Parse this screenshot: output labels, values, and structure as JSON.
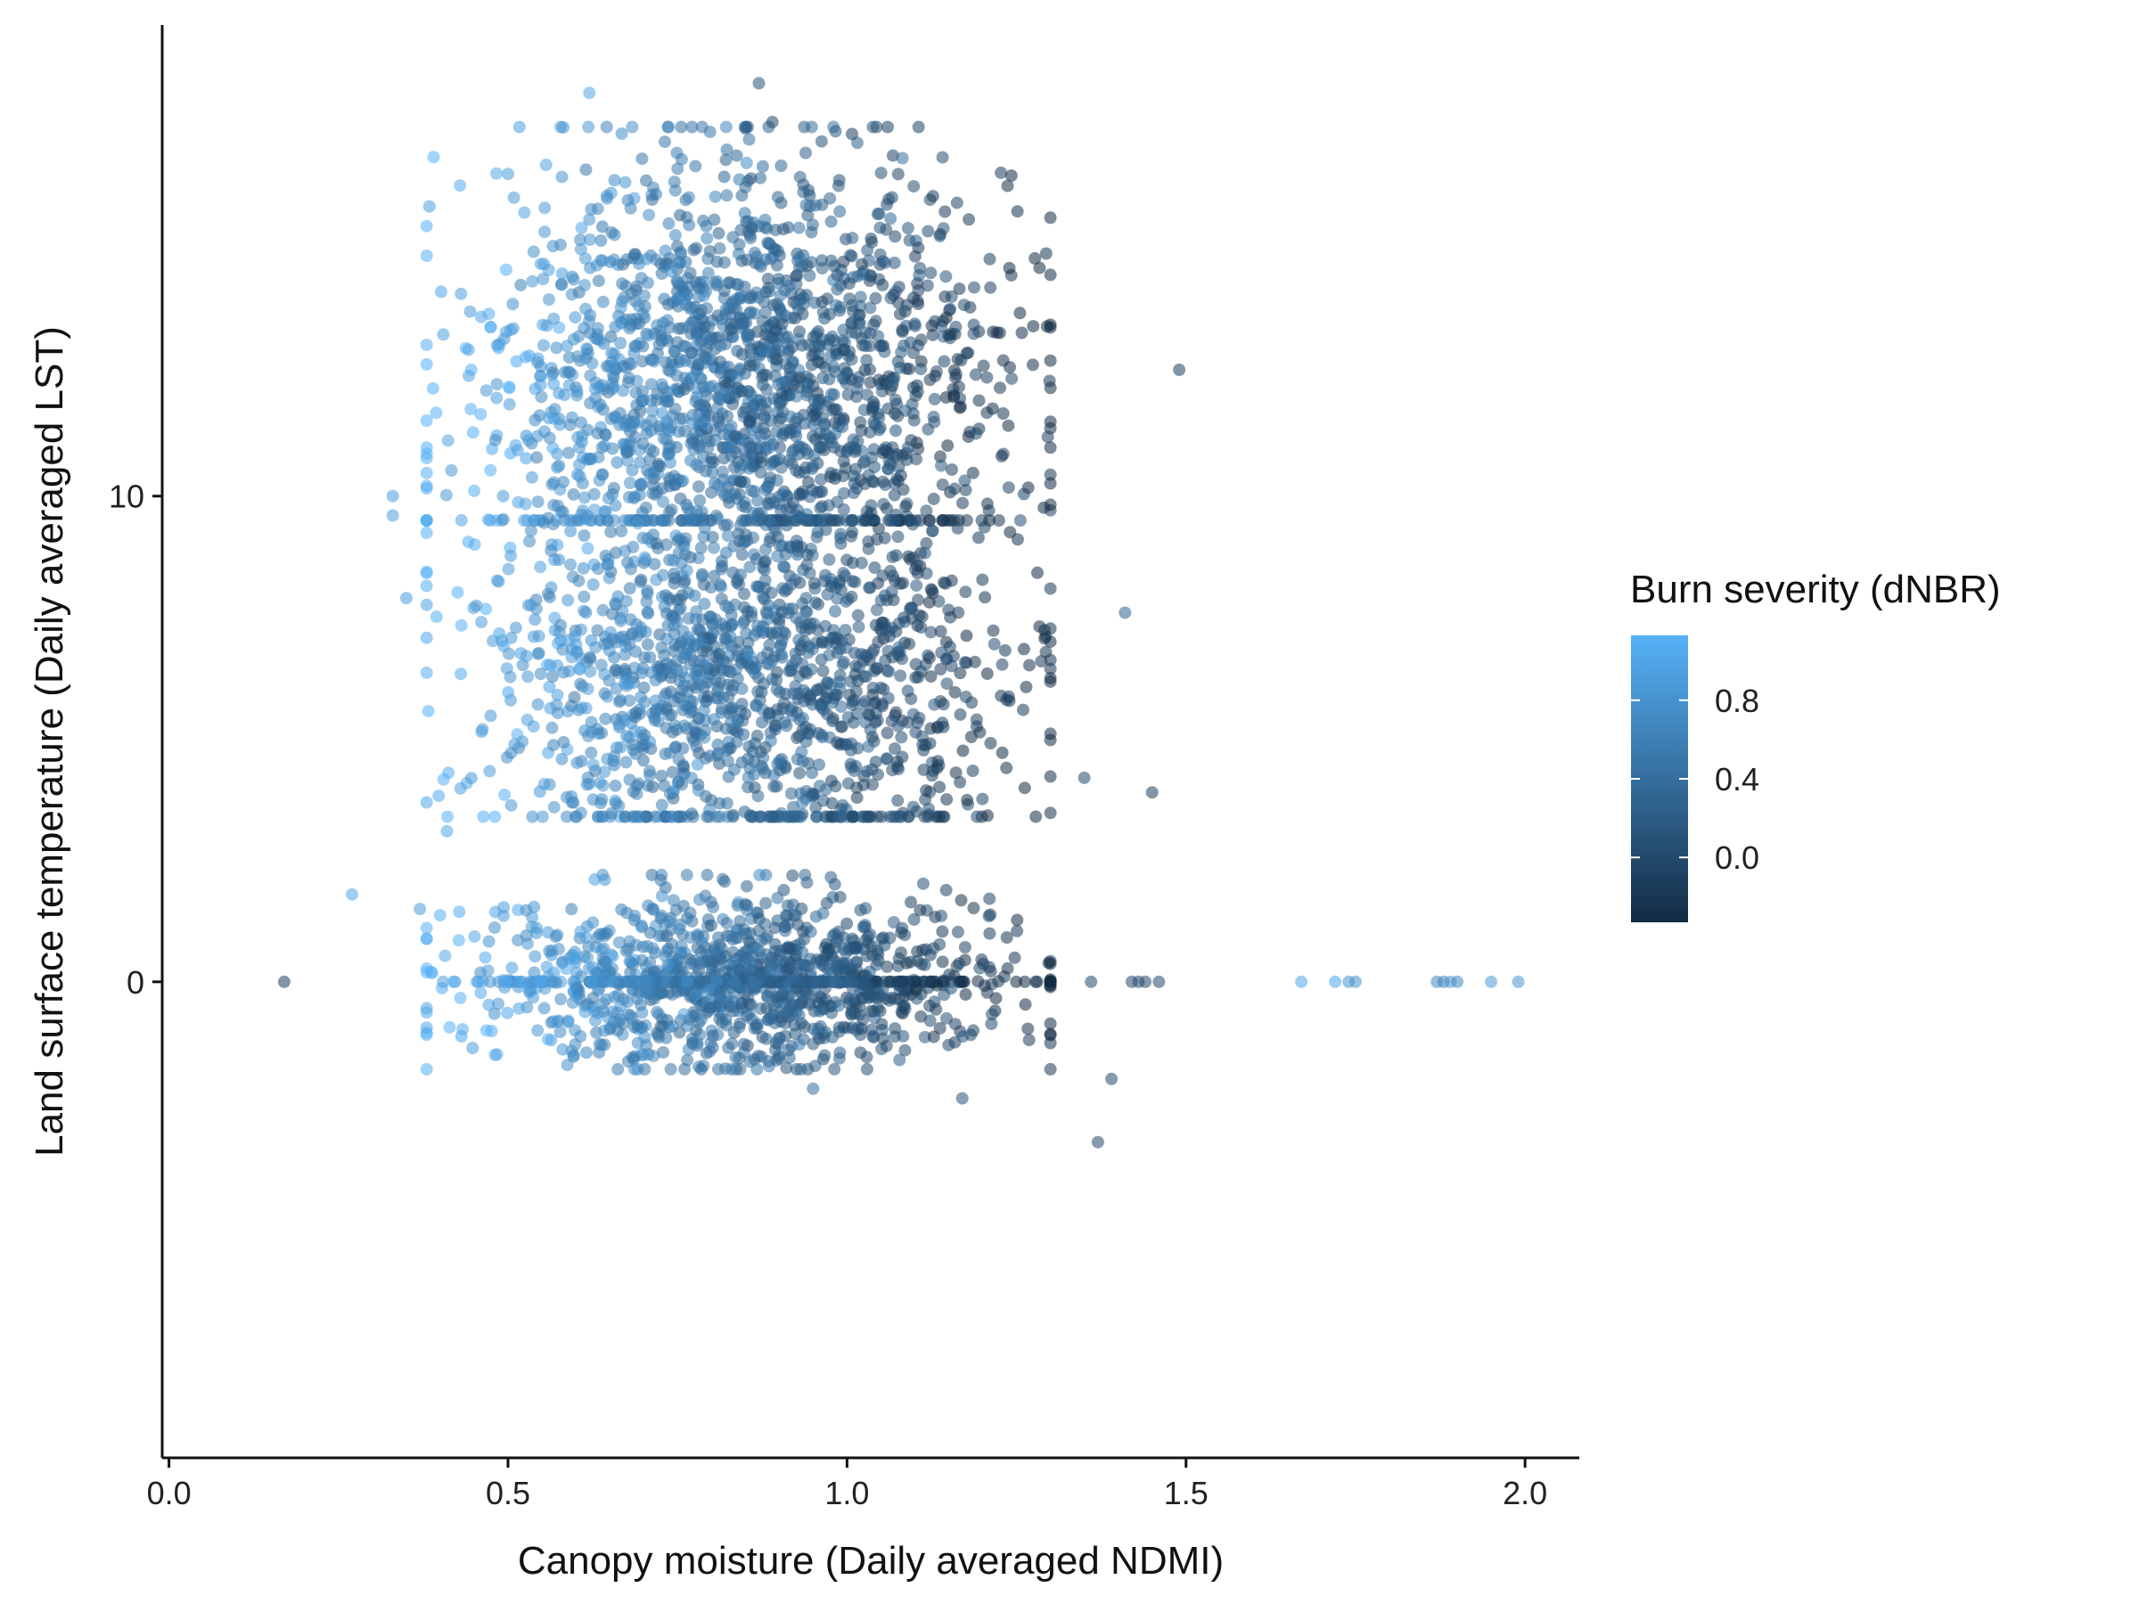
{
  "chart_data": {
    "type": "scatter",
    "title": "",
    "xlabel": "Canopy moisture (Daily averaged NDMI)",
    "ylabel": "Land surface temperature (Daily averaged LST)",
    "xlim": [
      -0.01,
      2.08
    ],
    "ylim": [
      -9.8,
      19.7
    ],
    "x_ticks": [
      0.0,
      0.5,
      1.0,
      1.5,
      2.0
    ],
    "x_tick_labels": [
      "0.0",
      "0.5",
      "1.0",
      "1.5",
      "2.0"
    ],
    "y_ticks": [
      0,
      10
    ],
    "y_tick_labels": [
      "0",
      "10"
    ],
    "grid": false,
    "legend": {
      "position": "right",
      "title": "Burn severity (dNBR)",
      "type": "colorbar",
      "range": [
        -0.33,
        1.13
      ],
      "ticks": [
        0.0,
        0.4,
        0.8
      ],
      "tick_labels": [
        "0.0",
        "0.4",
        "0.8"
      ],
      "low_color": "#132B43",
      "high_color": "#56B1F7"
    },
    "point_alpha": 0.55,
    "clusters": [
      {
        "x_center": 0.85,
        "x_spread": 0.2,
        "y_center": 12.5,
        "y_spread": 2.3,
        "n": 1700,
        "severity_trend": "high at low x, low at high x"
      },
      {
        "x_center": 0.85,
        "x_spread": 0.2,
        "y_center": 6.5,
        "y_spread": 2.0,
        "n": 1500,
        "severity_trend": "high at low x, low at high x"
      },
      {
        "x_center": 0.85,
        "x_spread": 0.2,
        "y_center": 0.0,
        "y_spread": 0.9,
        "n": 1400,
        "severity_trend": "high at low x, low at high x"
      }
    ],
    "points": [
      {
        "x": 0.17,
        "y": 0.0,
        "c": -0.1
      },
      {
        "x": 0.27,
        "y": 1.8,
        "c": 1.0
      },
      {
        "x": 0.33,
        "y": 10.0,
        "c": 0.9
      },
      {
        "x": 0.33,
        "y": 9.6,
        "c": 0.9
      },
      {
        "x": 0.35,
        "y": 7.9,
        "c": 0.9
      },
      {
        "x": 0.37,
        "y": 1.5,
        "c": 0.9
      },
      {
        "x": 0.41,
        "y": 3.1,
        "c": 1.0
      },
      {
        "x": 0.62,
        "y": 18.3,
        "c": 1.0
      },
      {
        "x": 0.87,
        "y": 18.5,
        "c": 0.1
      },
      {
        "x": 0.89,
        "y": 17.7,
        "c": 0.0
      },
      {
        "x": 1.06,
        "y": 17.6,
        "c": -0.1
      },
      {
        "x": 1.49,
        "y": 12.6,
        "c": -0.1
      },
      {
        "x": 1.41,
        "y": 7.6,
        "c": 0.3
      },
      {
        "x": 1.45,
        "y": 3.9,
        "c": -0.1
      },
      {
        "x": 1.35,
        "y": 4.2,
        "c": 0.0
      },
      {
        "x": 1.39,
        "y": -2.0,
        "c": 0.0
      },
      {
        "x": 1.37,
        "y": -3.3,
        "c": 0.0
      },
      {
        "x": 1.17,
        "y": -2.4,
        "c": 0.1
      },
      {
        "x": 0.95,
        "y": -2.2,
        "c": 0.4
      },
      {
        "x": 1.67,
        "y": 0.0,
        "c": 1.0
      },
      {
        "x": 1.72,
        "y": 0.0,
        "c": 1.0
      },
      {
        "x": 1.74,
        "y": 0.0,
        "c": 0.8
      },
      {
        "x": 1.75,
        "y": 0.0,
        "c": 0.8
      },
      {
        "x": 1.87,
        "y": 0.0,
        "c": 0.7
      },
      {
        "x": 1.88,
        "y": 0.0,
        "c": 0.6
      },
      {
        "x": 1.89,
        "y": 0.0,
        "c": 0.8
      },
      {
        "x": 1.9,
        "y": 0.0,
        "c": 0.7
      },
      {
        "x": 1.95,
        "y": 0.0,
        "c": 0.9
      },
      {
        "x": 1.99,
        "y": 0.0,
        "c": 0.8
      },
      {
        "x": 1.36,
        "y": 0.0,
        "c": 0.0
      },
      {
        "x": 1.42,
        "y": 0.0,
        "c": 0.0
      },
      {
        "x": 1.43,
        "y": 0.0,
        "c": 0.0
      },
      {
        "x": 1.44,
        "y": 0.0,
        "c": 0.0
      },
      {
        "x": 1.46,
        "y": 0.0,
        "c": 0.0
      }
    ]
  }
}
